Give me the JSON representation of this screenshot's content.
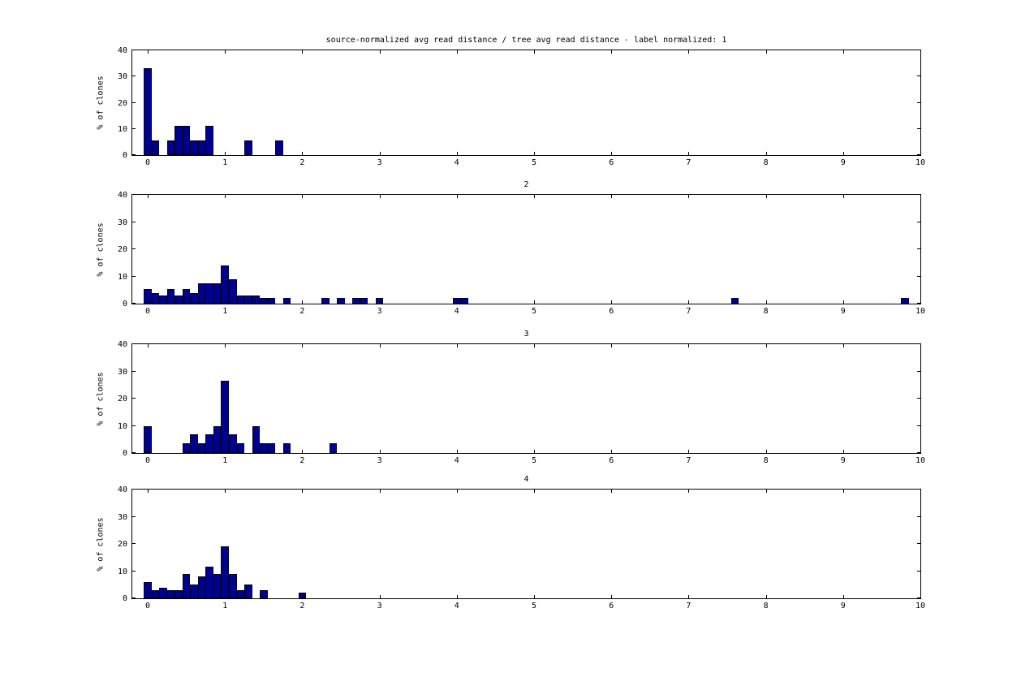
{
  "figure": {
    "background": "#ffffff",
    "bar_fill": "#00008f",
    "bar_edge": "#000033",
    "axis_color": "#000000"
  },
  "chart_data": [
    {
      "type": "bar",
      "title": "source-normalized avg read distance / tree avg read distance - label normalized: 1",
      "ylabel": "% of clones",
      "xlabel": "",
      "xlim": [
        -0.2,
        10
      ],
      "ylim": [
        0,
        40
      ],
      "x_ticks": [
        0,
        1,
        2,
        3,
        4,
        5,
        6,
        7,
        8,
        9,
        10
      ],
      "y_ticks": [
        0,
        10,
        20,
        30,
        40
      ],
      "bin_width": 0.1,
      "grid": false,
      "legend": null,
      "bars": [
        [
          0,
          33.3
        ],
        [
          0.1,
          5.6
        ],
        [
          0.3,
          5.6
        ],
        [
          0.4,
          11.1
        ],
        [
          0.5,
          11.1
        ],
        [
          0.6,
          5.6
        ],
        [
          0.7,
          5.6
        ],
        [
          0.8,
          11.1
        ],
        [
          1.3,
          5.6
        ],
        [
          1.7,
          5.6
        ]
      ]
    },
    {
      "type": "bar",
      "title": "2",
      "ylabel": "% of clones",
      "xlabel": "",
      "xlim": [
        -0.2,
        10
      ],
      "ylim": [
        0,
        40
      ],
      "x_ticks": [
        0,
        1,
        2,
        3,
        4,
        5,
        6,
        7,
        8,
        9,
        10
      ],
      "y_ticks": [
        0,
        10,
        20,
        30,
        40
      ],
      "bin_width": 0.1,
      "grid": false,
      "legend": null,
      "bars": [
        [
          0,
          5.5
        ],
        [
          0.1,
          4
        ],
        [
          0.2,
          3
        ],
        [
          0.3,
          5.5
        ],
        [
          0.4,
          3
        ],
        [
          0.5,
          5.5
        ],
        [
          0.6,
          4
        ],
        [
          0.7,
          7.5
        ],
        [
          0.8,
          7.5
        ],
        [
          0.9,
          7.5
        ],
        [
          1.0,
          14
        ],
        [
          1.1,
          9
        ],
        [
          1.2,
          3
        ],
        [
          1.3,
          3
        ],
        [
          1.4,
          3
        ],
        [
          1.5,
          2
        ],
        [
          1.6,
          2
        ],
        [
          1.8,
          2
        ],
        [
          2.3,
          2
        ],
        [
          2.5,
          2
        ],
        [
          2.7,
          2
        ],
        [
          2.8,
          2
        ],
        [
          3.0,
          2
        ],
        [
          4.0,
          2
        ],
        [
          4.1,
          2
        ],
        [
          7.6,
          2
        ],
        [
          9.8,
          2
        ]
      ]
    },
    {
      "type": "bar",
      "title": "3",
      "ylabel": "% of clones",
      "xlabel": "",
      "xlim": [
        -0.2,
        10
      ],
      "ylim": [
        0,
        40
      ],
      "x_ticks": [
        0,
        1,
        2,
        3,
        4,
        5,
        6,
        7,
        8,
        9,
        10
      ],
      "y_ticks": [
        0,
        10,
        20,
        30,
        40
      ],
      "bin_width": 0.1,
      "grid": false,
      "legend": null,
      "bars": [
        [
          0,
          10
        ],
        [
          0.5,
          3.5
        ],
        [
          0.6,
          7
        ],
        [
          0.7,
          3.5
        ],
        [
          0.8,
          7
        ],
        [
          0.9,
          10
        ],
        [
          1.0,
          26.5
        ],
        [
          1.1,
          7
        ],
        [
          1.2,
          3.5
        ],
        [
          1.4,
          10
        ],
        [
          1.5,
          3.5
        ],
        [
          1.6,
          3.5
        ],
        [
          1.8,
          3.5
        ],
        [
          2.4,
          3.5
        ]
      ]
    },
    {
      "type": "bar",
      "title": "4",
      "ylabel": "% of clones",
      "xlabel": "",
      "xlim": [
        -0.2,
        10
      ],
      "ylim": [
        0,
        40
      ],
      "x_ticks": [
        0,
        1,
        2,
        3,
        4,
        5,
        6,
        7,
        8,
        9,
        10
      ],
      "y_ticks": [
        0,
        10,
        20,
        30,
        40
      ],
      "bin_width": 0.1,
      "grid": false,
      "legend": null,
      "bars": [
        [
          0,
          6
        ],
        [
          0.1,
          3
        ],
        [
          0.2,
          4
        ],
        [
          0.3,
          3
        ],
        [
          0.4,
          3
        ],
        [
          0.5,
          9
        ],
        [
          0.6,
          5
        ],
        [
          0.7,
          8
        ],
        [
          0.8,
          11.5
        ],
        [
          0.9,
          9
        ],
        [
          1.0,
          19
        ],
        [
          1.1,
          9
        ],
        [
          1.2,
          3
        ],
        [
          1.3,
          5
        ],
        [
          1.5,
          3
        ],
        [
          2.0,
          2
        ]
      ]
    }
  ]
}
